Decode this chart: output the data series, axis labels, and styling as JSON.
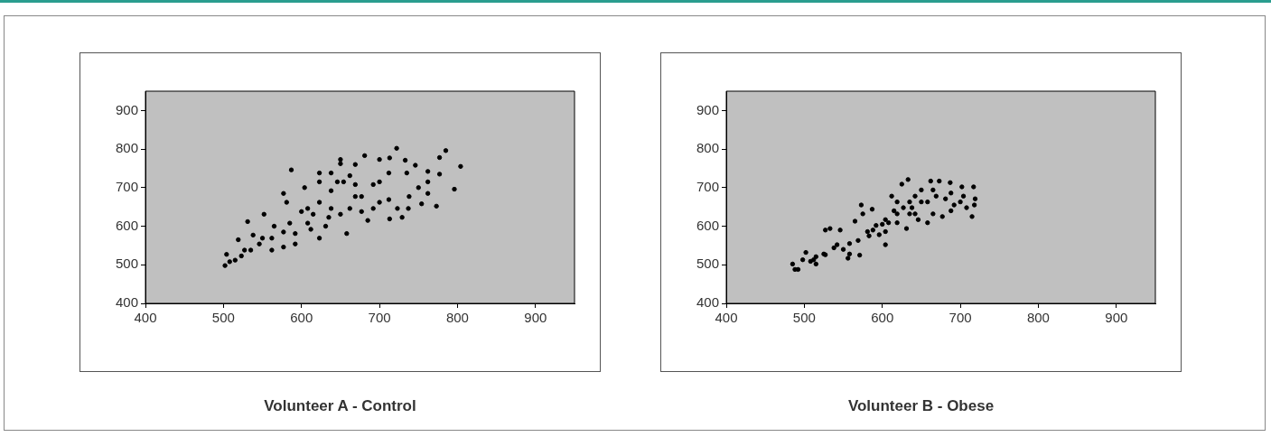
{
  "chart_data": [
    {
      "type": "scatter",
      "title": "Volunteer A - Control",
      "marker": "circle",
      "grid": false,
      "legend": false,
      "xlim": [
        400,
        950
      ],
      "ylim": [
        400,
        950
      ],
      "xticks": [
        400,
        500,
        600,
        700,
        800,
        900
      ],
      "yticks": [
        400,
        500,
        600,
        700,
        800,
        900
      ],
      "series": [
        {
          "color": "#000000",
          "x": [
            502,
            504,
            515,
            519,
            531,
            552,
            577,
            587,
            581,
            604,
            623,
            623,
            650,
            650,
            669,
            681,
            700,
            713,
            722,
            733,
            746,
            762,
            777,
            785,
            804,
            796,
            777,
            773,
            754,
            737,
            729,
            713,
            700,
            692,
            685,
            669,
            658,
            638,
            623,
            608,
            592,
            577,
            562,
            546,
            538,
            527,
            562,
            577,
            592,
            612,
            635,
            650,
            662,
            677,
            692,
            712,
            723,
            738,
            750,
            762,
            762,
            608,
            623,
            638,
            654,
            669,
            615,
            631,
            508,
            523,
            535,
            550,
            565,
            585,
            600,
            638,
            646,
            662,
            712,
            735,
            700,
            677
          ],
          "values": [
            498,
            527,
            512,
            565,
            612,
            631,
            685,
            746,
            662,
            700,
            738,
            715,
            773,
            762,
            760,
            783,
            773,
            777,
            802,
            771,
            758,
            742,
            778,
            796,
            755,
            696,
            735,
            652,
            658,
            646,
            623,
            619,
            662,
            708,
            615,
            677,
            581,
            646,
            569,
            608,
            554,
            585,
            569,
            554,
            577,
            538,
            538,
            546,
            581,
            592,
            623,
            631,
            646,
            638,
            646,
            669,
            646,
            677,
            700,
            715,
            685,
            646,
            662,
            692,
            715,
            708,
            631,
            600,
            508,
            523,
            538,
            569,
            600,
            608,
            638,
            738,
            715,
            731,
            738,
            738,
            715,
            677
          ]
        }
      ]
    },
    {
      "type": "scatter",
      "title": "Volunteer B - Obese",
      "marker": "circle",
      "grid": false,
      "legend": false,
      "xlim": [
        400,
        950
      ],
      "ylim": [
        400,
        950
      ],
      "xticks": [
        400,
        500,
        600,
        700,
        800,
        900
      ],
      "yticks": [
        400,
        500,
        600,
        700,
        800,
        900
      ],
      "series": [
        {
          "color": "#000000",
          "x": [
            485,
            488,
            492,
            498,
            502,
            515,
            512,
            527,
            527,
            533,
            546,
            542,
            556,
            558,
            571,
            565,
            575,
            573,
            587,
            581,
            588,
            604,
            600,
            612,
            619,
            625,
            633,
            635,
            642,
            650,
            662,
            673,
            687,
            702,
            717,
            719,
            718,
            715,
            700,
            688,
            677,
            665,
            658,
            646,
            631,
            619,
            608,
            635,
            658,
            681,
            704,
            688,
            669,
            650,
            638,
            627,
            615,
            604,
            592,
            583,
            569,
            558,
            550,
            538,
            525,
            515,
            508,
            619,
            642,
            665,
            692,
            708,
            596,
            604
          ],
          "values": [
            502,
            488,
            488,
            513,
            532,
            502,
            513,
            526,
            590,
            594,
            590,
            552,
            517,
            528,
            525,
            613,
            632,
            655,
            644,
            586,
            590,
            552,
            605,
            678,
            632,
            709,
            721,
            663,
            632,
            694,
            717,
            717,
            713,
            702,
            702,
            671,
            655,
            625,
            663,
            640,
            625,
            632,
            609,
            617,
            594,
            609,
            609,
            632,
            663,
            671,
            678,
            686,
            678,
            663,
            648,
            648,
            640,
            617,
            602,
            575,
            563,
            555,
            540,
            544,
            528,
            521,
            509,
            663,
            678,
            694,
            655,
            648,
            578,
            586
          ]
        }
      ]
    }
  ]
}
